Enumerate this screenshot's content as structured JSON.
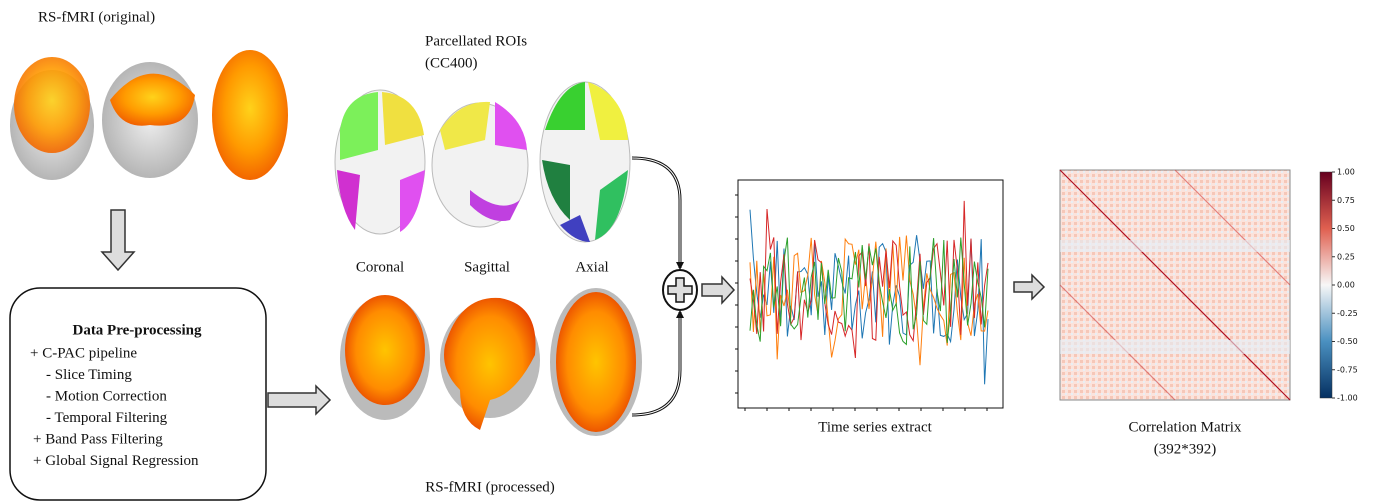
{
  "original": {
    "title": "RS-fMRI (original)"
  },
  "preprocessing": {
    "title": "Data Pre-processing",
    "lines": [
      "+ C-PAC pipeline",
      "- Slice Timing",
      "- Motion Correction",
      "- Temporal Filtering",
      "+  Band Pass Filtering",
      "+ Global Signal Regression"
    ]
  },
  "parcellation": {
    "title": "Parcellated ROIs",
    "subtitle": "(CC400)",
    "views": [
      "Coronal",
      "Sagittal",
      "Axial"
    ]
  },
  "processed": {
    "title": "RS-fMRI (processed)"
  },
  "time_series": {
    "caption": "Time series extract"
  },
  "correlation": {
    "caption": "Correlation Matrix",
    "size": "(392*392)",
    "colorbar_ticks": [
      "1.00",
      "0.75",
      "0.50",
      "0.25",
      "0.00",
      "-0.25",
      "-0.50",
      "-0.75",
      "-1.00"
    ]
  }
}
